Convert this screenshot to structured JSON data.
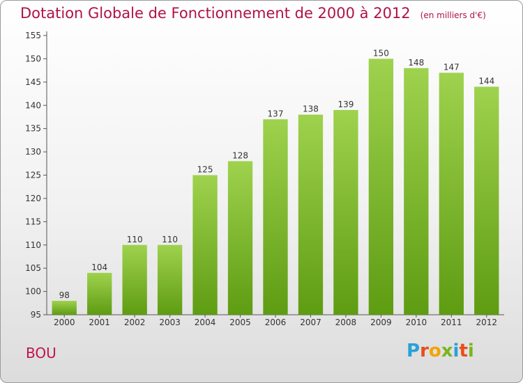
{
  "title": "Dotation Globale de Fonctionnement de 2000 à 2012",
  "unit_note": "(en milliers d'€)",
  "commune": "BOU",
  "logo": {
    "text": "Proxiti",
    "letters": [
      "P",
      "r",
      "o",
      "x",
      "i",
      "t",
      "i"
    ],
    "colors": [
      "#2aa0d8",
      "#e84e1b",
      "#f4a300",
      "#7ab51d",
      "#2aa0d8",
      "#e84e1b",
      "#7ab51d"
    ]
  },
  "chart_data": {
    "type": "bar",
    "title": "Dotation Globale de Fonctionnement de 2000 à 2012",
    "subtitle": "(en milliers d'€)",
    "xlabel": "",
    "ylabel": "",
    "categories": [
      "2000",
      "2001",
      "2002",
      "2003",
      "2004",
      "2005",
      "2006",
      "2007",
      "2008",
      "2009",
      "2010",
      "2011",
      "2012"
    ],
    "values": [
      98,
      104,
      110,
      110,
      125,
      128,
      137,
      138,
      139,
      150,
      148,
      147,
      144
    ],
    "ylim": [
      95,
      155
    ],
    "yticks": [
      95,
      100,
      105,
      110,
      115,
      120,
      125,
      130,
      135,
      140,
      145,
      150,
      155
    ],
    "grid": false,
    "bar_color_top": "#9fd24e",
    "bar_color_bottom": "#5e9c12"
  }
}
